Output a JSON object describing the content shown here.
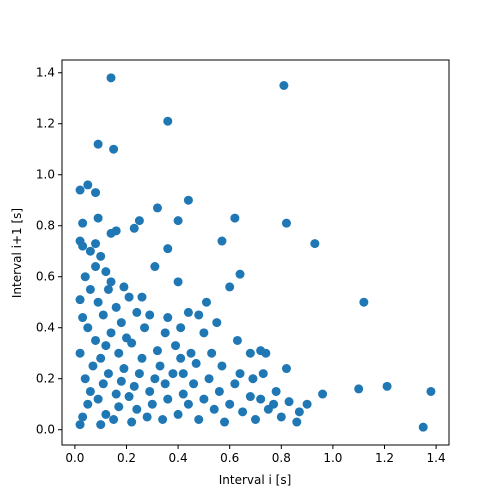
{
  "chart_data": {
    "type": "scatter",
    "xlabel": "Interval i [s]",
    "ylabel": "Interval i+1 [s]",
    "xlim": [
      -0.05,
      1.45
    ],
    "ylim": [
      -0.06,
      1.45
    ],
    "xticks": [
      {
        "value": 0,
        "label": "0.0"
      },
      0.2,
      0.4,
      0.6,
      0.8,
      {
        "value": 1,
        "label": "1.0"
      },
      1.2,
      1.4
    ],
    "yticks": [
      {
        "value": 0,
        "label": "0.0"
      },
      0.2,
      0.4,
      0.6,
      0.8,
      {
        "value": 1,
        "label": "1.0"
      },
      1.2,
      1.4
    ],
    "series": [
      {
        "color": "#1f77b4",
        "x": [
          0.14,
          0.81,
          0.36,
          0.09,
          0.15,
          0.02,
          0.05,
          0.08,
          0.44,
          0.32,
          0.62,
          0.82,
          0.09,
          0.03,
          0.4,
          0.25,
          0.23,
          0.16,
          0.14,
          0.93,
          0.57,
          0.36,
          1.12,
          0.02,
          0.03,
          0.08,
          0.64,
          0.31,
          0.4,
          1.35,
          1.38,
          1.21,
          1.1,
          0.96,
          0.9,
          0.87,
          0.82,
          0.74,
          0.72,
          0.68,
          0.6,
          0.63,
          0.51,
          0.48,
          0.44,
          0.41,
          0.36,
          0.29,
          0.02,
          0.03,
          0.05,
          0.06,
          0.04,
          0.07,
          0.02,
          0.08,
          0.05,
          0.03,
          0.1,
          0.12,
          0.09,
          0.11,
          0.13,
          0.1,
          0.12,
          0.14,
          0.11,
          0.09,
          0.15,
          0.17,
          0.16,
          0.18,
          0.19,
          0.17,
          0.2,
          0.18,
          0.16,
          0.13,
          0.22,
          0.24,
          0.21,
          0.23,
          0.25,
          0.26,
          0.22,
          0.27,
          0.24,
          0.21,
          0.28,
          0.3,
          0.29,
          0.31,
          0.33,
          0.32,
          0.34,
          0.36,
          0.35,
          0.38,
          0.4,
          0.42,
          0.41,
          0.44,
          0.46,
          0.48,
          0.5,
          0.52,
          0.54,
          0.56,
          0.58,
          0.6,
          0.62,
          0.65,
          0.68,
          0.7,
          0.72,
          0.75,
          0.78,
          0.8,
          0.83,
          0.86,
          0.06,
          0.04,
          0.08,
          0.12,
          0.1,
          0.06,
          0.02,
          0.14,
          0.19,
          0.26,
          0.35,
          0.45,
          0.5,
          0.55,
          0.47,
          0.53,
          0.39,
          0.42,
          0.57,
          0.64,
          0.69,
          0.73,
          0.77
        ],
        "y": [
          1.38,
          1.35,
          1.21,
          1.12,
          1.1,
          0.94,
          0.96,
          0.93,
          0.9,
          0.87,
          0.83,
          0.81,
          0.83,
          0.81,
          0.82,
          0.82,
          0.79,
          0.78,
          0.77,
          0.73,
          0.74,
          0.71,
          0.5,
          0.74,
          0.72,
          0.73,
          0.61,
          0.64,
          0.58,
          0.01,
          0.15,
          0.17,
          0.16,
          0.14,
          0.1,
          0.07,
          0.24,
          0.3,
          0.31,
          0.3,
          0.56,
          0.35,
          0.5,
          0.45,
          0.46,
          0.4,
          0.44,
          0.45,
          0.02,
          0.05,
          0.1,
          0.15,
          0.2,
          0.25,
          0.3,
          0.35,
          0.4,
          0.44,
          0.02,
          0.06,
          0.12,
          0.18,
          0.22,
          0.28,
          0.33,
          0.38,
          0.45,
          0.5,
          0.04,
          0.09,
          0.14,
          0.19,
          0.24,
          0.3,
          0.36,
          0.42,
          0.48,
          0.55,
          0.03,
          0.08,
          0.13,
          0.17,
          0.22,
          0.28,
          0.34,
          0.4,
          0.46,
          0.52,
          0.05,
          0.1,
          0.15,
          0.2,
          0.25,
          0.31,
          0.04,
          0.12,
          0.18,
          0.22,
          0.06,
          0.14,
          0.28,
          0.1,
          0.18,
          0.04,
          0.12,
          0.2,
          0.08,
          0.15,
          0.03,
          0.1,
          0.18,
          0.07,
          0.13,
          0.04,
          0.12,
          0.08,
          0.15,
          0.05,
          0.11,
          0.03,
          0.55,
          0.6,
          0.64,
          0.62,
          0.68,
          0.7,
          0.51,
          0.58,
          0.56,
          0.52,
          0.38,
          0.3,
          0.38,
          0.42,
          0.26,
          0.3,
          0.33,
          0.22,
          0.25,
          0.22,
          0.2,
          0.22,
          0.1
        ]
      }
    ]
  }
}
